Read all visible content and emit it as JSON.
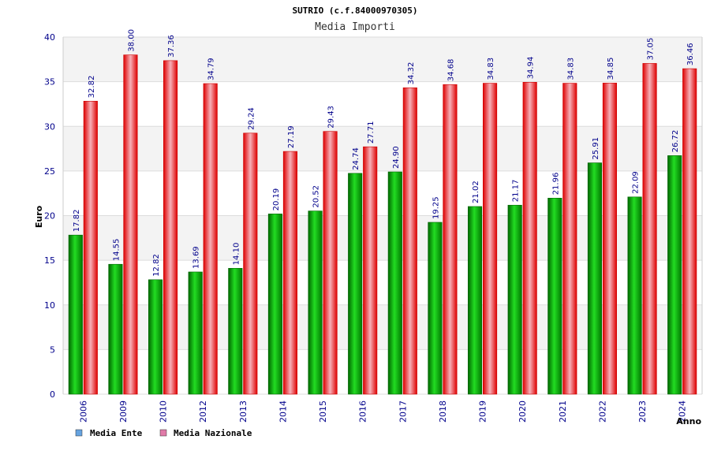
{
  "chart_data": {
    "type": "bar",
    "title": "SUTRIO (c.f.84000970305)",
    "subtitle": "Media Importi",
    "xlabel": "Anno",
    "ylabel": "Euro",
    "ylim": [
      0,
      40
    ],
    "yticks": [
      0,
      5,
      10,
      15,
      20,
      25,
      30,
      35,
      40
    ],
    "grid": true,
    "legend_position": "bottom-left",
    "categories": [
      "2006",
      "2009",
      "2010",
      "2012",
      "2013",
      "2014",
      "2015",
      "2016",
      "2017",
      "2018",
      "2019",
      "2020",
      "2021",
      "2022",
      "2023",
      "2024"
    ],
    "series": [
      {
        "name": "Media Ente",
        "color": "#00aa00",
        "legend_color": "#66a3e0",
        "values": [
          17.82,
          14.55,
          12.82,
          13.69,
          14.1,
          20.19,
          20.52,
          24.74,
          24.9,
          19.25,
          21.02,
          21.17,
          21.96,
          25.91,
          22.09,
          26.72
        ],
        "labels": [
          "17.82",
          "14.55",
          "12.82",
          "13.69",
          "14.10",
          "20.19",
          "20.52",
          "24.74",
          "24.90",
          "19.25",
          "21.02",
          "21.17",
          "21.96",
          "25.91",
          "22.09",
          "26.72"
        ]
      },
      {
        "name": "Media Nazionale",
        "color": "#ee1111",
        "legend_color": "#e07aa8",
        "values": [
          32.82,
          38.0,
          37.36,
          34.79,
          29.24,
          27.19,
          29.43,
          27.71,
          34.32,
          34.68,
          34.83,
          34.94,
          34.83,
          34.85,
          37.05,
          36.46
        ],
        "labels": [
          "32.82",
          "38.00",
          "37.36",
          "34.79",
          "29.24",
          "27.19",
          "29.43",
          "27.71",
          "34.32",
          "34.68",
          "34.83",
          "34.94",
          "34.83",
          "34.85",
          "37.05",
          "36.46"
        ]
      }
    ]
  }
}
